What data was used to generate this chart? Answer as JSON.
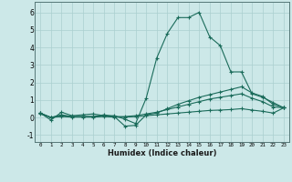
{
  "xlabel": "Humidex (Indice chaleur)",
  "background_color": "#cce8e8",
  "grid_color": "#aacfcf",
  "line_color": "#1a6b5a",
  "xlim": [
    -0.5,
    23.5
  ],
  "ylim": [
    -1.4,
    6.6
  ],
  "xticks": [
    0,
    1,
    2,
    3,
    4,
    5,
    6,
    7,
    8,
    9,
    10,
    11,
    12,
    13,
    14,
    15,
    16,
    17,
    18,
    19,
    20,
    21,
    22,
    23
  ],
  "yticks": [
    -1,
    0,
    1,
    2,
    3,
    4,
    5,
    6
  ],
  "line1_x": [
    0,
    1,
    2,
    3,
    4,
    5,
    6,
    7,
    8,
    9,
    10,
    11,
    12,
    13,
    14,
    15,
    16,
    17,
    18,
    19,
    20,
    21,
    22,
    23
  ],
  "line1_y": [
    0.25,
    -0.15,
    0.3,
    0.1,
    0.15,
    0.2,
    0.1,
    0.1,
    -0.1,
    -0.35,
    1.1,
    3.4,
    4.8,
    5.7,
    5.7,
    6.0,
    4.6,
    4.1,
    2.6,
    2.6,
    1.35,
    1.15,
    0.85,
    0.55
  ],
  "line2_x": [
    0,
    1,
    2,
    3,
    4,
    5,
    6,
    7,
    8,
    9,
    10,
    11,
    12,
    13,
    14,
    15,
    16,
    17,
    18,
    19,
    20,
    21,
    22,
    23
  ],
  "line2_y": [
    0.25,
    0.0,
    0.15,
    0.05,
    0.05,
    0.05,
    0.15,
    0.05,
    -0.5,
    -0.45,
    0.15,
    0.25,
    0.5,
    0.75,
    0.95,
    1.15,
    1.3,
    1.45,
    1.6,
    1.75,
    1.4,
    1.2,
    0.75,
    0.55
  ],
  "line3_x": [
    0,
    1,
    2,
    3,
    4,
    5,
    6,
    7,
    8,
    9,
    10,
    11,
    12,
    13,
    14,
    15,
    16,
    17,
    18,
    19,
    20,
    21,
    22,
    23
  ],
  "line3_y": [
    0.25,
    0.0,
    0.1,
    0.05,
    0.05,
    0.05,
    0.1,
    0.05,
    0.05,
    0.1,
    0.2,
    0.3,
    0.45,
    0.6,
    0.75,
    0.9,
    1.05,
    1.15,
    1.25,
    1.35,
    1.1,
    0.9,
    0.6,
    0.55
  ],
  "line4_x": [
    0,
    1,
    2,
    3,
    4,
    5,
    6,
    7,
    8,
    9,
    10,
    11,
    12,
    13,
    14,
    15,
    16,
    17,
    18,
    19,
    20,
    21,
    22,
    23
  ],
  "line4_y": [
    0.2,
    0.0,
    0.05,
    0.02,
    0.02,
    0.02,
    0.05,
    0.02,
    0.02,
    0.05,
    0.1,
    0.15,
    0.2,
    0.25,
    0.3,
    0.35,
    0.4,
    0.42,
    0.45,
    0.5,
    0.42,
    0.35,
    0.25,
    0.55
  ]
}
